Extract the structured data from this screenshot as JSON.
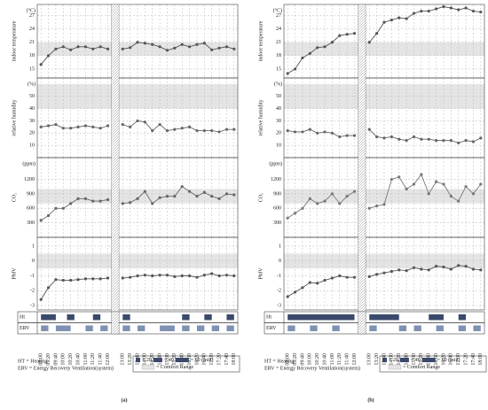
{
  "chart_data": [
    {
      "type": "line",
      "label": "(a)",
      "categories": [
        "09:00",
        "09:20",
        "09:40",
        "10:00",
        "10:20",
        "10:40",
        "11:00",
        "11:20",
        "11:40",
        "12:00",
        null,
        "13:00",
        "13:20",
        "13:40",
        "14:00",
        "14:20",
        "14:40",
        "15:00",
        "15:20",
        "15:40",
        "16:00",
        "16:20",
        "16:40",
        "17:00",
        "17:20",
        "17:40",
        "18:00"
      ],
      "panels": [
        {
          "ylabel": "indoor temperature",
          "unit": "(°C)",
          "ylim": [
            13,
            29.5
          ],
          "yticks": [
            15,
            18,
            21,
            24,
            27
          ],
          "band": [
            18,
            21
          ],
          "color": "#555555",
          "values": [
            16,
            18,
            19.5,
            20,
            19.3,
            20,
            20,
            19.5,
            20,
            19.5,
            null,
            19.5,
            19.8,
            21,
            20.8,
            20.5,
            20,
            19.2,
            19.7,
            20.5,
            20,
            20.5,
            20.8,
            19.3,
            19.7,
            20,
            19.5
          ]
        },
        {
          "ylabel": "relative humidity",
          "unit": "(%)",
          "ylim": [
            0,
            65
          ],
          "yticks": [
            10,
            20,
            30,
            40,
            50
          ],
          "band": [
            40,
            60
          ],
          "color": "#666666",
          "values": [
            25,
            26,
            27,
            24,
            24,
            25,
            26,
            25,
            24,
            26,
            null,
            27,
            25,
            30,
            29,
            22,
            27,
            22,
            23,
            24,
            25,
            22,
            22,
            22,
            21,
            23,
            23
          ]
        },
        {
          "ylabel": "CO₂",
          "unit": "(ppm)",
          "ylim": [
            0,
            1650
          ],
          "yticks": [
            300,
            600,
            900,
            1200
          ],
          "band": [
            700,
            1000
          ],
          "color": "#666666",
          "values": [
            350,
            450,
            600,
            600,
            700,
            800,
            800,
            750,
            750,
            780,
            null,
            700,
            720,
            800,
            950,
            700,
            820,
            850,
            850,
            1050,
            950,
            850,
            930,
            850,
            800,
            900,
            880
          ]
        },
        {
          "ylabel": "PMV",
          "ylim": [
            -3.3,
            1.6
          ],
          "yticks": [
            -3,
            -2,
            -1,
            0,
            1
          ],
          "band": [
            -0.5,
            0.5
          ],
          "color": "#555555",
          "values": [
            -2.6,
            -1.8,
            -1.25,
            -1.3,
            -1.3,
            -1.25,
            -1.2,
            -1.2,
            -1.2,
            -1.15,
            null,
            -1.15,
            -1.1,
            -1.0,
            -0.95,
            -1.0,
            -0.95,
            -0.95,
            -1.05,
            -1.0,
            -1.0,
            -1.1,
            -0.95,
            -0.85,
            -1.0,
            -0.95,
            -1.0
          ]
        }
      ],
      "schedule": [
        {
          "name": "Ht",
          "color": "#3b4a6b",
          "intervals": [
            [
              "09:00",
              "09:40"
            ],
            [
              "10:10",
              "10:30"
            ],
            [
              "11:20",
              "11:40"
            ],
            [
              "13:00",
              "13:20"
            ],
            [
              "15:40",
              "16:00"
            ],
            [
              "16:40",
              "17:00"
            ],
            [
              "17:40",
              "18:00"
            ]
          ]
        },
        {
          "name": "ERV",
          "color": "#7f91b3",
          "intervals": [
            [
              "09:00",
              "09:20"
            ],
            [
              "09:40",
              "10:20"
            ],
            [
              "11:00",
              "11:20"
            ],
            [
              "11:40",
              "12:00"
            ],
            [
              "13:00",
              "13:20"
            ],
            [
              "13:40",
              "14:00"
            ],
            [
              "14:40",
              "15:20"
            ],
            [
              "15:40",
              "16:00"
            ],
            [
              "16:20",
              "16:40"
            ],
            [
              "17:00",
              "17:20"
            ],
            [
              "17:40",
              "18:00"
            ]
          ]
        }
      ]
    },
    {
      "type": "line",
      "label": "(b)",
      "categories": [
        "09:00",
        "09:20",
        "09:40",
        "10:00",
        "10:20",
        "10:40",
        "11:00",
        "11:20",
        "11:40",
        "12:00",
        null,
        "13:00",
        "13:20",
        "13:40",
        "14:00",
        "14:20",
        "14:40",
        "15:00",
        "15:20",
        "15:40",
        "16:00",
        "16:20",
        "16:40",
        "17:00",
        "17:20",
        "17:40",
        "18:00"
      ],
      "panels": [
        {
          "ylabel": "indoor temperature",
          "unit": "(°C)",
          "ylim": [
            13,
            29.5
          ],
          "yticks": [
            15,
            18,
            21,
            24,
            27
          ],
          "band": [
            18,
            21
          ],
          "color": "#555555",
          "values": [
            14,
            15,
            17.5,
            18.5,
            19.8,
            20,
            21,
            22.5,
            22.8,
            23,
            null,
            21,
            23,
            25.5,
            26,
            26.5,
            26.3,
            27.5,
            28,
            28,
            28.5,
            29,
            28.7,
            28.3,
            28.7,
            28,
            27.8
          ]
        },
        {
          "ylabel": "relative humidity",
          "unit": "(%)",
          "ylim": [
            0,
            65
          ],
          "yticks": [
            10,
            20,
            30,
            40,
            50
          ],
          "band": [
            40,
            60
          ],
          "color": "#666666",
          "values": [
            22,
            21,
            21,
            23,
            20,
            21,
            20,
            17,
            18,
            18,
            null,
            23,
            17,
            16,
            17,
            15,
            14,
            17,
            15,
            15,
            14,
            14,
            14,
            12,
            14,
            13,
            16
          ]
        },
        {
          "ylabel": "CO₂",
          "unit": "(ppm)",
          "ylim": [
            0,
            1650
          ],
          "yticks": [
            300,
            600,
            900,
            1200
          ],
          "band": [
            700,
            1000
          ],
          "color": "#777777",
          "values": [
            400,
            500,
            600,
            800,
            700,
            750,
            900,
            700,
            850,
            950,
            null,
            600,
            650,
            680,
            1200,
            1250,
            1000,
            1100,
            1300,
            900,
            1150,
            1100,
            850,
            750,
            1050,
            900,
            1100
          ]
        },
        {
          "ylabel": "PMV",
          "ylim": [
            -3.3,
            1.6
          ],
          "yticks": [
            -3,
            -2,
            -1,
            0,
            1
          ],
          "band": [
            -0.5,
            0.5
          ],
          "color": "#555555",
          "values": [
            -2.4,
            -2.1,
            -1.8,
            -1.45,
            -1.5,
            -1.3,
            -1.15,
            -1.0,
            -1.1,
            -1.1,
            null,
            -1.05,
            -0.9,
            -0.8,
            -0.7,
            -0.6,
            -0.65,
            -0.45,
            -0.55,
            -0.6,
            -0.35,
            -0.4,
            -0.55,
            -0.3,
            -0.35,
            -0.55,
            -0.6
          ]
        }
      ],
      "schedule": [
        {
          "name": "Ht",
          "color": "#3b4a6b",
          "intervals": [
            [
              "09:00",
              "12:00"
            ],
            [
              "13:00",
              "14:20"
            ],
            [
              "15:40",
              "16:20"
            ],
            [
              "17:00",
              "17:20"
            ]
          ]
        },
        {
          "name": "ERV",
          "color": "#7f91b3",
          "intervals": [
            [
              "09:00",
              "09:20"
            ],
            [
              "10:00",
              "10:20"
            ],
            [
              "11:00",
              "11:20"
            ],
            [
              "13:00",
              "13:20"
            ],
            [
              "14:20",
              "14:40"
            ],
            [
              "15:00",
              "15:20"
            ],
            [
              "16:00",
              "16:20"
            ],
            [
              "17:00",
              "17:20"
            ],
            [
              "17:40",
              "18:00"
            ]
          ]
        }
      ]
    }
  ],
  "legend": {
    "ht": "HT = Heating",
    "erv": "ERV = Energy Recovery Ventilation(system)",
    "durations": [
      "= 20",
      "= 40",
      "= 60 (min)"
    ],
    "comfort": "= Comfort Range"
  }
}
